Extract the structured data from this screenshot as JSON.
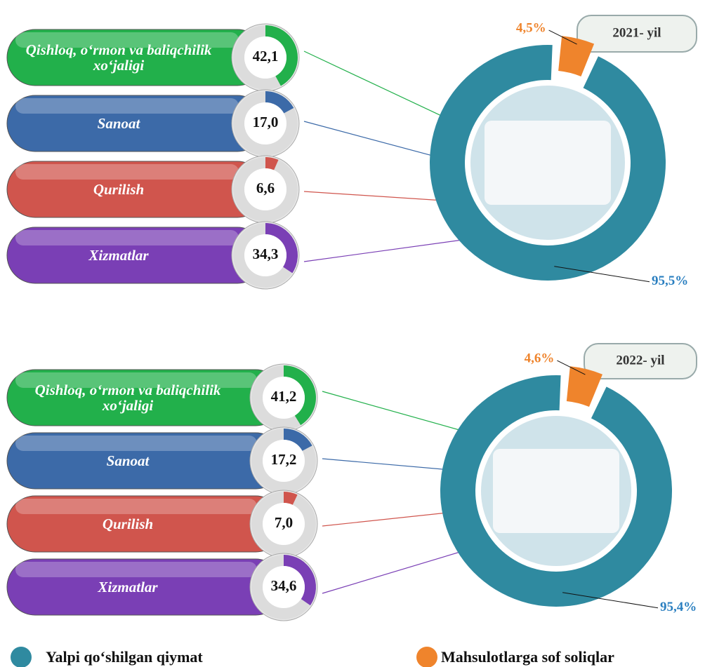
{
  "chart_data": [
    {
      "type": "ring-bars",
      "categories": [
        "Qishloq, o‘rmon va baliqchilik xo‘jaligi",
        "Sanoat",
        "Qurilish",
        "Xizmatlar"
      ],
      "values": [
        42.1,
        17.0,
        6.6,
        34.3
      ],
      "value_labels": [
        "42,1",
        "17,0",
        "6,6",
        "34,3"
      ],
      "colors": [
        "#22b04b",
        "#3c6aa8",
        "#d0554d",
        "#7a3fb5"
      ]
    },
    {
      "type": "donut",
      "title": "2021- yil",
      "values": [
        95.5,
        4.5
      ],
      "value_labels": [
        "95,5%",
        "4,5%"
      ],
      "colors": [
        "#2f8aa0",
        "#ef842c"
      ]
    },
    {
      "type": "ring-bars",
      "categories": [
        "Qishloq, o‘rmon va baliqchilik xo‘jaligi",
        "Sanoat",
        "Qurilish",
        "Xizmatlar"
      ],
      "values": [
        41.2,
        17.2,
        7.0,
        34.6
      ],
      "value_labels": [
        "41,2",
        "17,2",
        "7,0",
        "34,6"
      ],
      "colors": [
        "#22b04b",
        "#3c6aa8",
        "#d0554d",
        "#7a3fb5"
      ]
    },
    {
      "type": "donut",
      "title": "2022- yil",
      "values": [
        95.4,
        4.6
      ],
      "value_labels": [
        "95,4%",
        "4,6%"
      ],
      "colors": [
        "#2f8aa0",
        "#ef842c"
      ]
    }
  ],
  "legend": {
    "items": [
      "Yalpi qo‘shilgan qiymat",
      "Mahsulotlarga sof soliqlar"
    ],
    "colors": [
      "#2f8aa0",
      "#ef842c"
    ]
  }
}
